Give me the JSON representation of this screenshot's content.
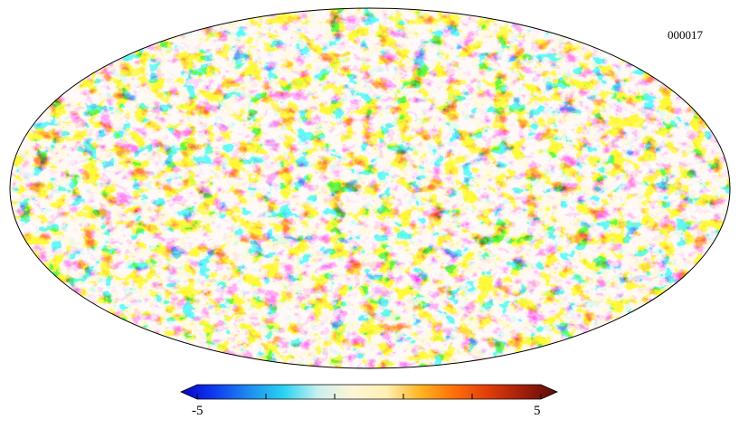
{
  "map": {
    "projection": "mollweide",
    "label": "000017"
  },
  "colorbar": {
    "min_label": "-5",
    "max_label": "5",
    "min_value": -5,
    "max_value": 5,
    "colors": [
      "#0a00c8",
      "#0f3cf0",
      "#1e8cf0",
      "#28d2f0",
      "#c8f0f0",
      "#fff4d6",
      "#fff0b4",
      "#ffb41e",
      "#ff6e0a",
      "#e03c0a",
      "#a01e0a",
      "#5a0a0a"
    ]
  }
}
